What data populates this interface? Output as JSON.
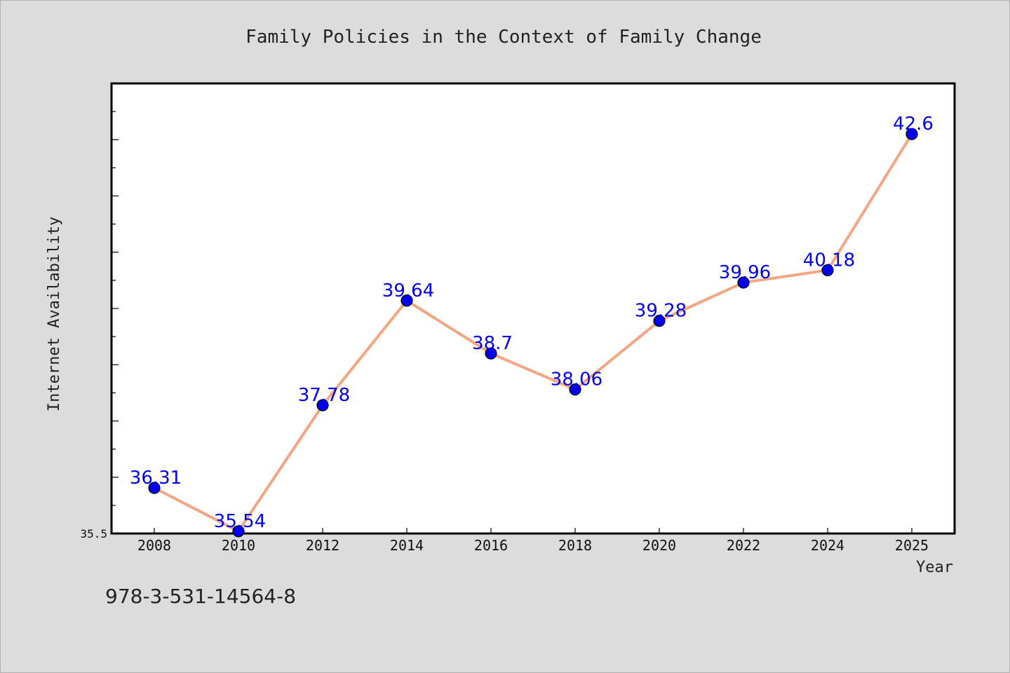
{
  "chart_data": {
    "type": "line",
    "title": "Family Policies in the Context of Family Change",
    "xlabel": "Year",
    "ylabel": "Internet Availability",
    "categories": [
      "2008",
      "2010",
      "2012",
      "2014",
      "2016",
      "2018",
      "2020",
      "2022",
      "2024",
      "2025"
    ],
    "series": [
      {
        "values": [
          36.31,
          35.54,
          37.78,
          39.64,
          38.7,
          38.06,
          39.28,
          39.96,
          40.18,
          42.6
        ]
      }
    ],
    "data_labels": [
      "36.31",
      "35.54",
      "37.78",
      "39.64",
      "38.7",
      "38.06",
      "39.28",
      "39.96",
      "40.18",
      "42.6"
    ],
    "ylim": [
      35.5,
      43.5
    ],
    "y_tick_labels": [
      "35.5"
    ],
    "grid": false,
    "legend": "none",
    "colors": {
      "line": "#f4a582",
      "marker": "#0000ee",
      "data_label": "#0000ee",
      "background": "#dcdcdc",
      "plot_area": "#ffffff"
    }
  },
  "footer": {
    "isbn": "978-3-531-14564-8"
  }
}
